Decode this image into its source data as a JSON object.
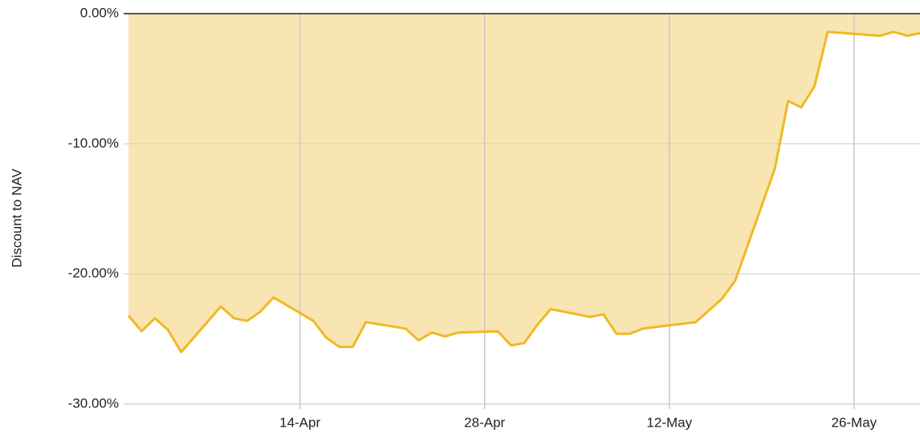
{
  "chart_data": {
    "type": "area",
    "y_axis_label": "Discount to NAV",
    "x": [
      "1-Apr",
      "2-Apr",
      "3-Apr",
      "4-Apr",
      "5-Apr",
      "8-Apr",
      "9-Apr",
      "10-Apr",
      "11-Apr",
      "12-Apr",
      "15-Apr",
      "16-Apr",
      "17-Apr",
      "18-Apr",
      "19-Apr",
      "22-Apr",
      "23-Apr",
      "24-Apr",
      "25-Apr",
      "26-Apr",
      "29-Apr",
      "30-Apr",
      "1-May",
      "2-May",
      "3-May",
      "6-May",
      "7-May",
      "8-May",
      "9-May",
      "10-May",
      "14-May",
      "16-May",
      "17-May",
      "20-May",
      "21-May",
      "22-May",
      "23-May",
      "24-May",
      "28-May",
      "29-May",
      "30-May",
      "31-May"
    ],
    "series": [
      {
        "name": "Discount to NAV",
        "color": "#f0b923",
        "fill": "#f9e5b2",
        "values": [
          -23.2,
          -24.4,
          -23.4,
          -24.3,
          -26.0,
          -22.5,
          -23.4,
          -23.6,
          -22.9,
          -21.8,
          -23.6,
          -24.9,
          -25.6,
          -25.6,
          -23.7,
          -24.2,
          -25.1,
          -24.5,
          -24.8,
          -24.5,
          -24.4,
          -25.5,
          -25.3,
          -23.9,
          -22.7,
          -23.3,
          -23.1,
          -24.6,
          -24.6,
          -24.2,
          -23.7,
          -21.9,
          -20.5,
          -11.9,
          -6.7,
          -7.2,
          -5.6,
          -1.4,
          -1.7,
          -1.4,
          -1.7,
          -1.5
        ]
      }
    ],
    "xlim": [
      "1-Apr",
      "31-May"
    ],
    "xticks": [
      "14-Apr",
      "28-Apr",
      "12-May",
      "26-May"
    ],
    "ylim": [
      -30,
      0
    ],
    "yticks": [
      {
        "value": -30,
        "label": "-30.00%"
      },
      {
        "value": -20,
        "label": "-20.00%"
      },
      {
        "value": -10,
        "label": "-10.00%"
      },
      {
        "value": 0,
        "label": "0.00%"
      }
    ],
    "grid": true
  }
}
